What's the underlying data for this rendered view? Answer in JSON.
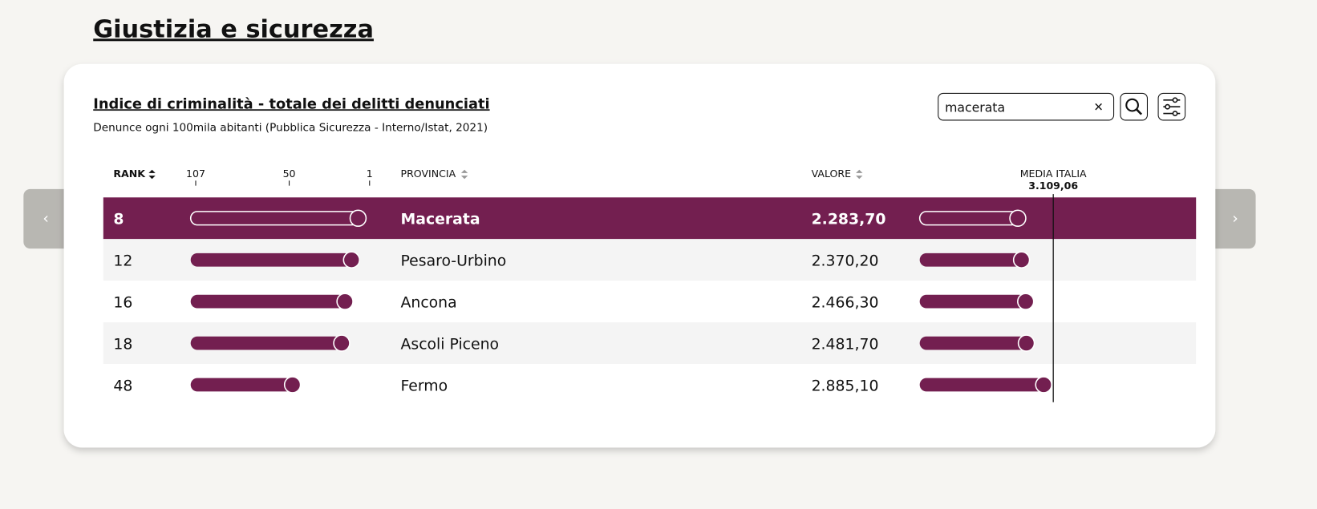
{
  "header": {
    "title": "Giustizia e sicurezza"
  },
  "card": {
    "title": "Indice di criminalità - totale dei delitti denunciati",
    "subtitle": "Denunce ogni 100mila abitanti (Pubblica Sicurezza - Interno/Istat, 2021)",
    "search": "macerata",
    "columns": {
      "rank": "RANK",
      "provincia": "PROVINCIA",
      "valore": "VALORE",
      "media": "MEDIA ITALIA"
    },
    "rank_ticks": [
      107,
      50,
      1
    ],
    "media": {
      "value": 3109.06,
      "label": "3.109,06"
    },
    "rows": [
      {
        "rank": 8,
        "provincia": "Macerata",
        "valore": 2283.7,
        "valore_label": "2.283,70"
      },
      {
        "rank": 12,
        "provincia": "Pesaro-Urbino",
        "valore": 2370.2,
        "valore_label": "2.370,20"
      },
      {
        "rank": 16,
        "provincia": "Ancona",
        "valore": 2466.3,
        "valore_label": "2.466,30"
      },
      {
        "rank": 18,
        "provincia": "Ascoli Piceno",
        "valore": 2481.7,
        "valore_label": "2.481,70"
      },
      {
        "rank": 48,
        "provincia": "Fermo",
        "valore": 2885.1,
        "valore_label": "2.885,10"
      }
    ]
  }
}
